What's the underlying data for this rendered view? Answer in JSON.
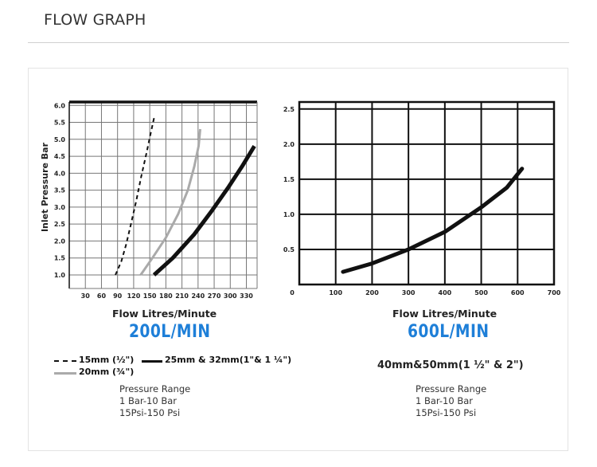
{
  "header": {
    "title": "FLOW GRAPH"
  },
  "chart_data": [
    {
      "type": "line",
      "ylabel": "Inlet Pressure Bar",
      "xlabel": "Flow Litres/Minute",
      "x_ticks": [
        "30",
        "60",
        "90",
        "120",
        "150",
        "180",
        "210",
        "240",
        "270",
        "300",
        "330"
      ],
      "y_ticks": [
        "1.0",
        "1.5",
        "2.0",
        "2.5",
        "3.0",
        "3.5",
        "4.0",
        "4.5",
        "5.0",
        "5.5",
        "6.0"
      ],
      "xlim": [
        0,
        350
      ],
      "ylim": [
        0.6,
        6.1
      ],
      "grid": true,
      "series": [
        {
          "name": "15mm (½\")",
          "color": "#111111",
          "style": "dashed",
          "points": [
            [
              86,
              1.0
            ],
            [
              97,
              1.4
            ],
            [
              106,
              1.9
            ],
            [
              115,
              2.5
            ],
            [
              125,
              3.2
            ],
            [
              134,
              3.9
            ],
            [
              144,
              4.6
            ],
            [
              152,
              5.2
            ],
            [
              159,
              5.7
            ]
          ]
        },
        {
          "name": "20mm (¾\")",
          "color": "#aaaaaa",
          "style": "solid",
          "points": [
            [
              133,
              1.0
            ],
            [
              155,
              1.5
            ],
            [
              180,
              2.1
            ],
            [
              203,
              2.8
            ],
            [
              221,
              3.5
            ],
            [
              233,
              4.2
            ],
            [
              241,
              4.8
            ],
            [
              244,
              5.3
            ]
          ]
        },
        {
          "name": "25mm & 32mm(1\"& 1 ¼\")",
          "color": "#111111",
          "style": "solid-thick",
          "points": [
            [
              158,
              1.0
            ],
            [
              193,
              1.5
            ],
            [
              233,
              2.2
            ],
            [
              266,
              2.9
            ],
            [
              297,
              3.6
            ],
            [
              322,
              4.2
            ],
            [
              345,
              4.8
            ]
          ]
        }
      ]
    },
    {
      "type": "line",
      "xlabel": "Flow Litres/Minute",
      "x_ticks": [
        "0",
        "100",
        "200",
        "300",
        "400",
        "500",
        "600",
        "700"
      ],
      "y_ticks": [
        "0.5",
        "1.0",
        "1.5",
        "2.0",
        "2.5"
      ],
      "xlim": [
        0,
        700
      ],
      "ylim": [
        0,
        2.6
      ],
      "grid": true,
      "series": [
        {
          "name": "",
          "color": "#111111",
          "style": "solid-thick",
          "points": [
            [
              120,
              0.18
            ],
            [
              200,
              0.3
            ],
            [
              300,
              0.5
            ],
            [
              400,
              0.75
            ],
            [
              500,
              1.1
            ],
            [
              570,
              1.38
            ],
            [
              612,
              1.65
            ]
          ]
        }
      ]
    }
  ],
  "left": {
    "flow_title": "Flow Litres/Minute",
    "flow_rate": "200L/MIN",
    "legend": {
      "item1": "15mm (½\")",
      "item2": "25mm & 32mm(1\"& 1 ¼\")",
      "item3": "20mm (¾\")"
    },
    "specs": {
      "line1": "Pressure Range",
      "line2": "1 Bar-10 Bar",
      "line3": "15Psi-150 Psi"
    }
  },
  "right": {
    "flow_title": "Flow Litres/Minute",
    "flow_rate": "600L/MIN",
    "subtitle": "40mm&50mm(1 ½\" & 2\")",
    "specs": {
      "line1": "Pressure Range",
      "line2": "1 Bar-10 Bar",
      "line3": "15Psi-150 Psi"
    }
  }
}
